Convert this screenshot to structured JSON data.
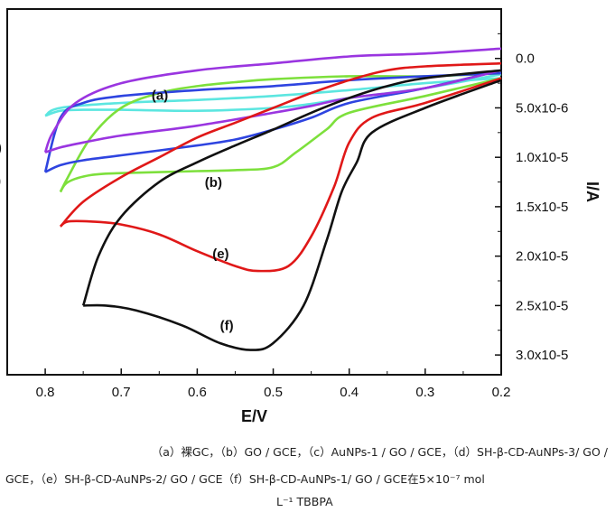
{
  "chart_data": {
    "type": "line",
    "xlabel": "E/V",
    "ylabel": "I/A",
    "x_ticks": [
      "0.8",
      "0.7",
      "0.6",
      "0.5",
      "0.4",
      "0.3",
      "0.2"
    ],
    "y_ticks": [
      "0.0",
      "5.0x10-6",
      "1.0x10-5",
      "1.5x10-5",
      "2.0x10-5",
      "2.5x10-5",
      "3.0x10-5"
    ],
    "xlim": [
      0.85,
      0.2
    ],
    "ylim": [
      -0.5,
      3.2
    ],
    "y_unit_note": "I in units of 1e-5 A, increasing downward",
    "series": [
      {
        "name": "(a)",
        "color": "#5ce6e0",
        "forward": [
          [
            0.8,
            0.58
          ],
          [
            0.78,
            0.53
          ],
          [
            0.75,
            0.52
          ],
          [
            0.7,
            0.52
          ],
          [
            0.6,
            0.53
          ],
          [
            0.5,
            0.5
          ],
          [
            0.45,
            0.46
          ],
          [
            0.4,
            0.4
          ],
          [
            0.3,
            0.3
          ],
          [
            0.2,
            0.16
          ]
        ],
        "reverse": [
          [
            0.2,
            0.2
          ],
          [
            0.3,
            0.25
          ],
          [
            0.4,
            0.32
          ],
          [
            0.5,
            0.38
          ],
          [
            0.6,
            0.42
          ],
          [
            0.7,
            0.45
          ],
          [
            0.78,
            0.5
          ],
          [
            0.8,
            0.58
          ]
        ]
      },
      {
        "name": "(b)",
        "color": "#7de03c",
        "forward": [
          [
            0.78,
            1.35
          ],
          [
            0.77,
            1.25
          ],
          [
            0.74,
            1.18
          ],
          [
            0.7,
            1.16
          ],
          [
            0.6,
            1.14
          ],
          [
            0.55,
            1.13
          ],
          [
            0.5,
            1.1
          ],
          [
            0.47,
            0.95
          ],
          [
            0.43,
            0.72
          ],
          [
            0.4,
            0.55
          ],
          [
            0.3,
            0.38
          ],
          [
            0.2,
            0.2
          ]
        ],
        "reverse": [
          [
            0.2,
            0.15
          ],
          [
            0.3,
            0.18
          ],
          [
            0.4,
            0.18
          ],
          [
            0.5,
            0.21
          ],
          [
            0.55,
            0.24
          ],
          [
            0.6,
            0.28
          ],
          [
            0.65,
            0.35
          ],
          [
            0.7,
            0.5
          ],
          [
            0.74,
            0.8
          ],
          [
            0.77,
            1.2
          ],
          [
            0.78,
            1.35
          ]
        ]
      },
      {
        "name": "(c)",
        "color": "#2e44e0",
        "forward": [
          [
            0.8,
            1.15
          ],
          [
            0.78,
            1.08
          ],
          [
            0.75,
            1.03
          ],
          [
            0.7,
            0.98
          ],
          [
            0.6,
            0.88
          ],
          [
            0.55,
            0.82
          ],
          [
            0.5,
            0.72
          ],
          [
            0.45,
            0.6
          ],
          [
            0.4,
            0.45
          ],
          [
            0.3,
            0.3
          ],
          [
            0.2,
            0.12
          ]
        ],
        "reverse": [
          [
            0.2,
            0.15
          ],
          [
            0.3,
            0.18
          ],
          [
            0.4,
            0.22
          ],
          [
            0.5,
            0.28
          ],
          [
            0.6,
            0.32
          ],
          [
            0.7,
            0.38
          ],
          [
            0.75,
            0.45
          ],
          [
            0.78,
            0.6
          ],
          [
            0.8,
            1.15
          ]
        ]
      },
      {
        "name": "(d)",
        "color": "#9a35e0",
        "forward": [
          [
            0.8,
            0.95
          ],
          [
            0.78,
            0.9
          ],
          [
            0.75,
            0.85
          ],
          [
            0.7,
            0.78
          ],
          [
            0.6,
            0.68
          ],
          [
            0.5,
            0.55
          ],
          [
            0.45,
            0.48
          ],
          [
            0.4,
            0.4
          ],
          [
            0.3,
            0.3
          ],
          [
            0.2,
            0.12
          ]
        ],
        "reverse": [
          [
            0.2,
            -0.1
          ],
          [
            0.3,
            -0.05
          ],
          [
            0.4,
            -0.02
          ],
          [
            0.5,
            0.05
          ],
          [
            0.6,
            0.12
          ],
          [
            0.7,
            0.25
          ],
          [
            0.76,
            0.45
          ],
          [
            0.79,
            0.75
          ],
          [
            0.8,
            0.95
          ]
        ]
      },
      {
        "name": "(e)",
        "color": "#e01818",
        "forward": [
          [
            0.78,
            1.7
          ],
          [
            0.77,
            1.65
          ],
          [
            0.74,
            1.65
          ],
          [
            0.7,
            1.68
          ],
          [
            0.65,
            1.78
          ],
          [
            0.6,
            1.95
          ],
          [
            0.55,
            2.1
          ],
          [
            0.52,
            2.15
          ],
          [
            0.48,
            2.1
          ],
          [
            0.45,
            1.8
          ],
          [
            0.42,
            1.3
          ],
          [
            0.4,
            0.85
          ],
          [
            0.37,
            0.6
          ],
          [
            0.3,
            0.45
          ],
          [
            0.2,
            0.2
          ]
        ],
        "reverse": [
          [
            0.2,
            0.05
          ],
          [
            0.3,
            0.08
          ],
          [
            0.35,
            0.12
          ],
          [
            0.4,
            0.22
          ],
          [
            0.45,
            0.35
          ],
          [
            0.5,
            0.5
          ],
          [
            0.55,
            0.65
          ],
          [
            0.6,
            0.8
          ],
          [
            0.65,
            1.0
          ],
          [
            0.7,
            1.2
          ],
          [
            0.75,
            1.45
          ],
          [
            0.78,
            1.7
          ]
        ]
      },
      {
        "name": "(f)",
        "color": "#111111",
        "forward": [
          [
            0.75,
            2.5
          ],
          [
            0.72,
            2.5
          ],
          [
            0.68,
            2.55
          ],
          [
            0.62,
            2.7
          ],
          [
            0.57,
            2.88
          ],
          [
            0.53,
            2.95
          ],
          [
            0.5,
            2.88
          ],
          [
            0.46,
            2.5
          ],
          [
            0.43,
            1.85
          ],
          [
            0.41,
            1.35
          ],
          [
            0.39,
            1.05
          ],
          [
            0.37,
            0.75
          ],
          [
            0.3,
            0.5
          ],
          [
            0.2,
            0.22
          ]
        ],
        "reverse": [
          [
            0.2,
            0.12
          ],
          [
            0.3,
            0.2
          ],
          [
            0.35,
            0.28
          ],
          [
            0.4,
            0.4
          ],
          [
            0.45,
            0.55
          ],
          [
            0.5,
            0.72
          ],
          [
            0.55,
            0.88
          ],
          [
            0.6,
            1.05
          ],
          [
            0.65,
            1.25
          ],
          [
            0.7,
            1.6
          ],
          [
            0.73,
            2.0
          ],
          [
            0.75,
            2.5
          ]
        ]
      }
    ],
    "annotations": [
      {
        "text": "(a)",
        "x": 0.66,
        "y": 0.42
      },
      {
        "text": "(b)",
        "x": 0.59,
        "y": 1.3
      },
      {
        "text": "(c)",
        "x": 0.88,
        "y": 1.28
      },
      {
        "text": "(b)",
        "x": 0.88,
        "y": 0.95
      },
      {
        "text": "(e)",
        "x": 0.58,
        "y": 2.02
      },
      {
        "text": "(f)",
        "x": 0.57,
        "y": 2.75
      }
    ]
  },
  "caption": {
    "line1": "（a）裸GC，（b）GO / GCE，（c）AuNPs-1 / GO / GCE，（d）SH-β-CD-AuNPs-3/ GO /",
    "line2": "GCE，（e）SH-β-CD-AuNPs-2/ GO / GCE（f）SH-β-CD-AuNPs-1/ GO / GCE在5×10⁻⁷ mol",
    "line3": "L⁻¹ TBBPA"
  }
}
